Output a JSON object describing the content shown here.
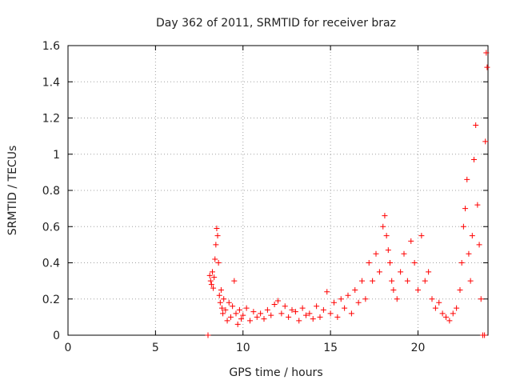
{
  "chart_data": {
    "type": "scatter",
    "title": "Day 362 of 2011, SRMTID for receiver braz",
    "xlabel": "GPS time / hours",
    "ylabel": "SRMTID / TECUs",
    "xlim": [
      0,
      24
    ],
    "ylim": [
      0,
      1.6
    ],
    "xticks": [
      0,
      5,
      10,
      15,
      20
    ],
    "xtick_labels": [
      "0",
      "5",
      "10",
      "15",
      "20"
    ],
    "yticks": [
      0,
      0.2,
      0.4,
      0.6,
      0.8,
      1.0,
      1.2,
      1.4,
      1.6
    ],
    "ytick_labels": [
      "0",
      "0.2",
      "0.4",
      "0.6",
      "0.8",
      "1",
      "1.2",
      "1.4",
      "1.6"
    ],
    "grid": true,
    "marker": "+",
    "color": "#ff0000",
    "series": [
      {
        "name": "SRMTID",
        "x": [
          8.0,
          8.1,
          8.15,
          8.2,
          8.25,
          8.3,
          8.35,
          8.4,
          8.45,
          8.5,
          8.55,
          8.6,
          8.65,
          8.7,
          8.75,
          8.8,
          8.85,
          8.9,
          9.0,
          9.1,
          9.2,
          9.3,
          9.4,
          9.5,
          9.6,
          9.7,
          9.8,
          9.9,
          10.0,
          10.2,
          10.4,
          10.6,
          10.8,
          11.0,
          11.2,
          11.4,
          11.6,
          11.8,
          12.0,
          12.2,
          12.4,
          12.6,
          12.8,
          13.0,
          13.2,
          13.4,
          13.6,
          13.8,
          14.0,
          14.2,
          14.4,
          14.6,
          14.8,
          15.0,
          15.2,
          15.4,
          15.6,
          15.8,
          16.0,
          16.2,
          16.4,
          16.6,
          16.8,
          17.0,
          17.2,
          17.4,
          17.6,
          17.8,
          18.0,
          18.1,
          18.2,
          18.3,
          18.4,
          18.5,
          18.6,
          18.8,
          19.0,
          19.2,
          19.4,
          19.6,
          19.8,
          20.0,
          20.2,
          20.4,
          20.6,
          20.8,
          21.0,
          21.2,
          21.4,
          21.6,
          21.8,
          22.0,
          22.2,
          22.4,
          22.5,
          22.6,
          22.7,
          22.8,
          22.9,
          23.0,
          23.1,
          23.2,
          23.3,
          23.4,
          23.5,
          23.6,
          23.7,
          23.8,
          23.85,
          23.9,
          23.95
        ],
        "y": [
          0.0,
          0.33,
          0.3,
          0.28,
          0.35,
          0.26,
          0.32,
          0.42,
          0.5,
          0.59,
          0.55,
          0.4,
          0.22,
          0.18,
          0.25,
          0.15,
          0.12,
          0.2,
          0.14,
          0.08,
          0.18,
          0.1,
          0.16,
          0.3,
          0.12,
          0.06,
          0.14,
          0.09,
          0.11,
          0.15,
          0.08,
          0.13,
          0.1,
          0.12,
          0.09,
          0.14,
          0.11,
          0.17,
          0.19,
          0.12,
          0.16,
          0.1,
          0.14,
          0.13,
          0.08,
          0.15,
          0.11,
          0.12,
          0.09,
          0.16,
          0.1,
          0.14,
          0.24,
          0.12,
          0.18,
          0.1,
          0.2,
          0.15,
          0.22,
          0.12,
          0.25,
          0.18,
          0.3,
          0.2,
          0.4,
          0.3,
          0.45,
          0.35,
          0.6,
          0.66,
          0.55,
          0.47,
          0.4,
          0.3,
          0.25,
          0.2,
          0.35,
          0.45,
          0.3,
          0.52,
          0.4,
          0.25,
          0.55,
          0.3,
          0.35,
          0.2,
          0.15,
          0.18,
          0.12,
          0.1,
          0.08,
          0.12,
          0.15,
          0.25,
          0.4,
          0.6,
          0.7,
          0.86,
          0.45,
          0.3,
          0.55,
          0.97,
          1.16,
          0.72,
          0.5,
          0.2,
          0.0,
          0.0,
          1.07,
          1.56,
          1.48
        ]
      }
    ]
  }
}
